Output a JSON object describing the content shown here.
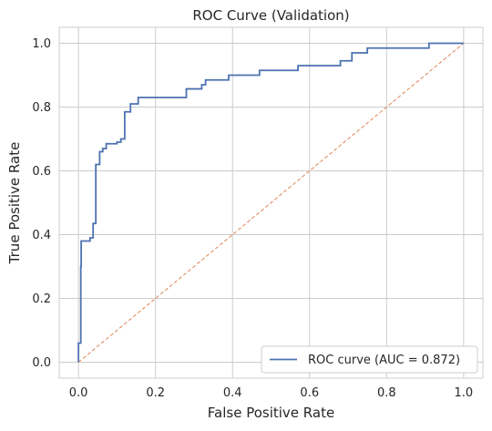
{
  "chart_data": {
    "type": "line",
    "title": "ROC Curve (Validation)",
    "xlabel": "False Positive Rate",
    "ylabel": "True Positive Rate",
    "xlim": [
      -0.05,
      1.05
    ],
    "ylim": [
      -0.05,
      1.05
    ],
    "xticks": [
      "0.0",
      "0.2",
      "0.4",
      "0.6",
      "0.8",
      "1.0"
    ],
    "yticks": [
      "0.0",
      "0.2",
      "0.4",
      "0.6",
      "0.8",
      "1.0"
    ],
    "grid": true,
    "legend_position": "lower-right",
    "series": [
      {
        "name": "ROC curve (AUC = 0.872)",
        "color": "#4c72b0",
        "style": "solid",
        "x": [
          0.0,
          0.0,
          0.006,
          0.006,
          0.007,
          0.007,
          0.03,
          0.03,
          0.038,
          0.038,
          0.045,
          0.045,
          0.055,
          0.055,
          0.063,
          0.063,
          0.072,
          0.072,
          0.1,
          0.1,
          0.11,
          0.11,
          0.12,
          0.12,
          0.135,
          0.135,
          0.155,
          0.155,
          0.28,
          0.28,
          0.32,
          0.32,
          0.33,
          0.33,
          0.39,
          0.39,
          0.47,
          0.47,
          0.57,
          0.57,
          0.68,
          0.68,
          0.71,
          0.71,
          0.75,
          0.75,
          0.91,
          0.91,
          1.0
        ],
        "y": [
          0.0,
          0.06,
          0.06,
          0.3,
          0.3,
          0.38,
          0.38,
          0.39,
          0.39,
          0.435,
          0.435,
          0.62,
          0.62,
          0.66,
          0.66,
          0.67,
          0.67,
          0.685,
          0.685,
          0.69,
          0.69,
          0.7,
          0.7,
          0.785,
          0.785,
          0.81,
          0.81,
          0.83,
          0.83,
          0.857,
          0.857,
          0.87,
          0.87,
          0.885,
          0.885,
          0.9,
          0.9,
          0.915,
          0.915,
          0.93,
          0.93,
          0.945,
          0.945,
          0.97,
          0.97,
          0.985,
          0.985,
          1.0,
          1.0
        ]
      },
      {
        "name": "",
        "color": "#dd8452",
        "style": "dashed",
        "x": [
          0,
          1
        ],
        "y": [
          0,
          1
        ]
      }
    ]
  }
}
